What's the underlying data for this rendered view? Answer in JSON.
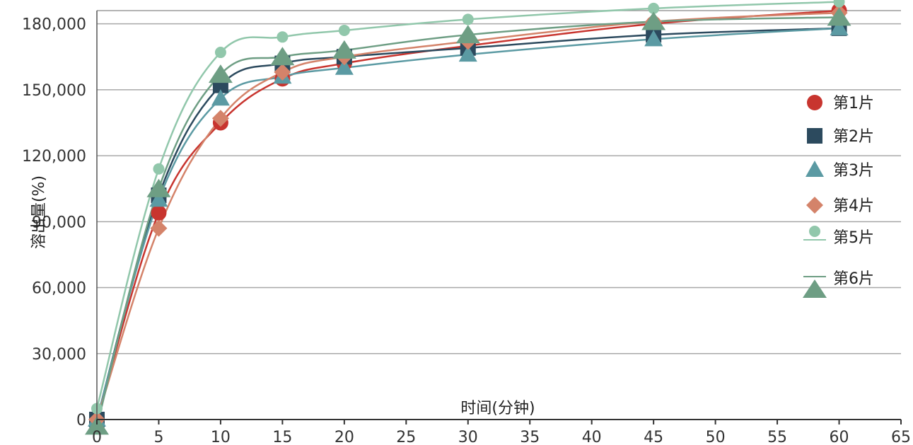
{
  "chart_data": {
    "type": "line",
    "title": "",
    "xlabel": "时间(分钟)",
    "ylabel": "溶出量(%)",
    "xlim": [
      0,
      65
    ],
    "ylim": [
      0,
      186000
    ],
    "x_ticks": [
      0,
      5,
      10,
      15,
      20,
      25,
      30,
      35,
      40,
      45,
      50,
      55,
      60,
      65
    ],
    "y_ticks": [
      0,
      30000,
      60000,
      90000,
      120000,
      150000,
      180000
    ],
    "y_tick_labels": [
      "0",
      "30,000",
      "60,000",
      "90,000",
      "120,000",
      "150,000",
      "180,000"
    ],
    "grid": "horizontal",
    "legend_position": "right",
    "x": [
      0,
      5,
      10,
      15,
      20,
      30,
      45,
      60
    ],
    "series": [
      {
        "name": "第1片",
        "marker": "circle",
        "color": "#c8352f",
        "values": [
          0,
          94000,
          135000,
          155000,
          162000,
          170000,
          180000,
          186000
        ]
      },
      {
        "name": "第2片",
        "marker": "square",
        "color": "#2c4a5e",
        "values": [
          0,
          102000,
          152000,
          162000,
          165000,
          169000,
          175000,
          178000
        ]
      },
      {
        "name": "第3片",
        "marker": "triangle",
        "color": "#5b9aa3",
        "values": [
          0,
          100000,
          146000,
          156000,
          160000,
          166000,
          173000,
          178000
        ]
      },
      {
        "name": "第4片",
        "marker": "diamond",
        "color": "#d4836a",
        "values": [
          0,
          87000,
          137000,
          158000,
          165000,
          172000,
          181000,
          185000
        ]
      },
      {
        "name": "第5片",
        "marker": "small-circle",
        "color": "#91c7ab",
        "values": [
          5000,
          114000,
          167000,
          174000,
          177000,
          182000,
          187000,
          190000
        ]
      },
      {
        "name": "第6片",
        "marker": "big-triangle",
        "color": "#6e9e84",
        "values": [
          -3000,
          105000,
          157000,
          165000,
          168000,
          175000,
          181000,
          183000
        ]
      }
    ]
  }
}
